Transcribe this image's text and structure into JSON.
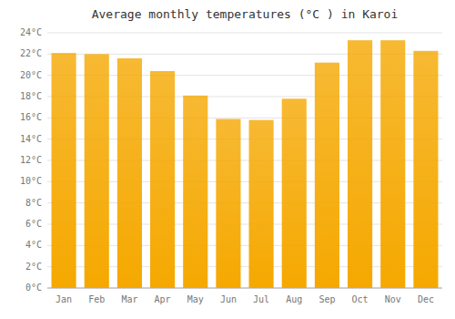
{
  "chart_data": {
    "type": "bar",
    "title": "Average monthly temperatures (°C ) in Karoi",
    "categories": [
      "Jan",
      "Feb",
      "Mar",
      "Apr",
      "May",
      "Jun",
      "Jul",
      "Aug",
      "Sep",
      "Oct",
      "Nov",
      "Dec"
    ],
    "values": [
      22.1,
      22.0,
      21.6,
      20.4,
      18.1,
      15.9,
      15.8,
      17.8,
      21.2,
      23.3,
      23.3,
      22.3
    ],
    "color": "#F5A800",
    "ylim": [
      0,
      24
    ],
    "yticks": [
      {
        "value": 0,
        "label": "0°C"
      },
      {
        "value": 2,
        "label": "2°C"
      },
      {
        "value": 4,
        "label": "4°C"
      },
      {
        "value": 6,
        "label": "6°C"
      },
      {
        "value": 8,
        "label": "8°C"
      },
      {
        "value": 10,
        "label": "10°C"
      },
      {
        "value": 12,
        "label": "12°C"
      },
      {
        "value": 14,
        "label": "14°C"
      },
      {
        "value": 16,
        "label": "16°C"
      },
      {
        "value": 18,
        "label": "18°C"
      },
      {
        "value": 20,
        "label": "20°C"
      },
      {
        "value": 22,
        "label": "22°C"
      },
      {
        "value": 24,
        "label": "24°C"
      }
    ],
    "grid": true
  }
}
